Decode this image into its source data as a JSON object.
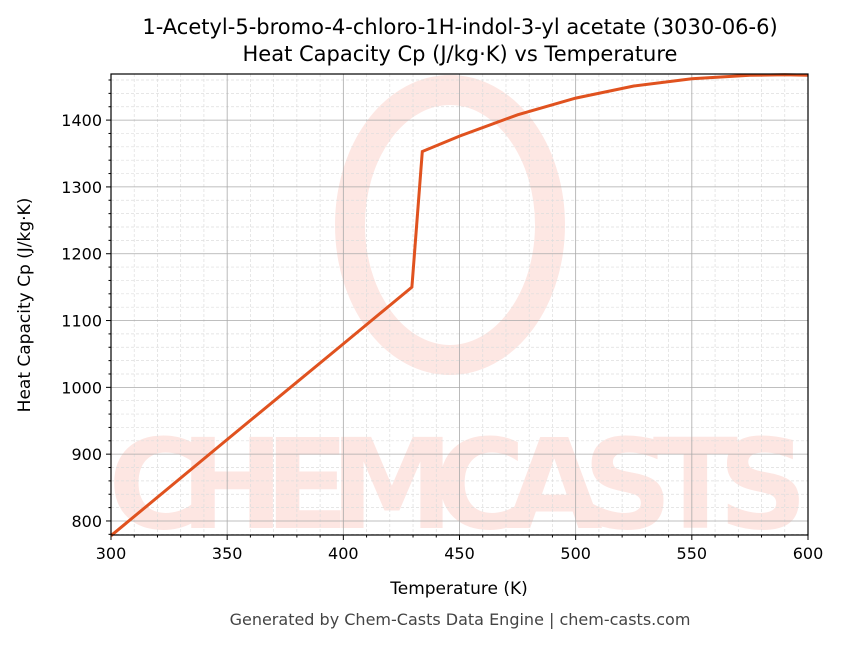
{
  "chart_data": {
    "type": "line",
    "title": "1-Acetyl-5-bromo-4-chloro-1H-indol-3-yl acetate (3030-06-6)",
    "subtitle": "Heat Capacity Cp (J/kg·K) vs Temperature",
    "xlabel": "Temperature (K)",
    "ylabel": "Heat Capacity Cp (J/kg·K)",
    "xlim": [
      300,
      600
    ],
    "ylim": [
      779,
      1469
    ],
    "xticks": [
      300,
      350,
      400,
      450,
      500,
      550,
      600
    ],
    "yticks": [
      800,
      900,
      1000,
      1100,
      1200,
      1300,
      1400
    ],
    "grid": true,
    "line_color": "#e0521f",
    "series": [
      {
        "x": [
          300,
          350,
          400,
          429.5,
          434,
          450,
          475,
          500,
          525,
          550,
          575,
          590,
          600
        ],
        "values": [
          778,
          922,
          1065,
          1150,
          1353,
          1376,
          1408,
          1433,
          1451,
          1462,
          1467,
          1468,
          1467
        ]
      }
    ]
  },
  "watermark": "CHEMCASTS",
  "footer": "Generated by Chem-Casts Data Engine | chem-casts.com"
}
